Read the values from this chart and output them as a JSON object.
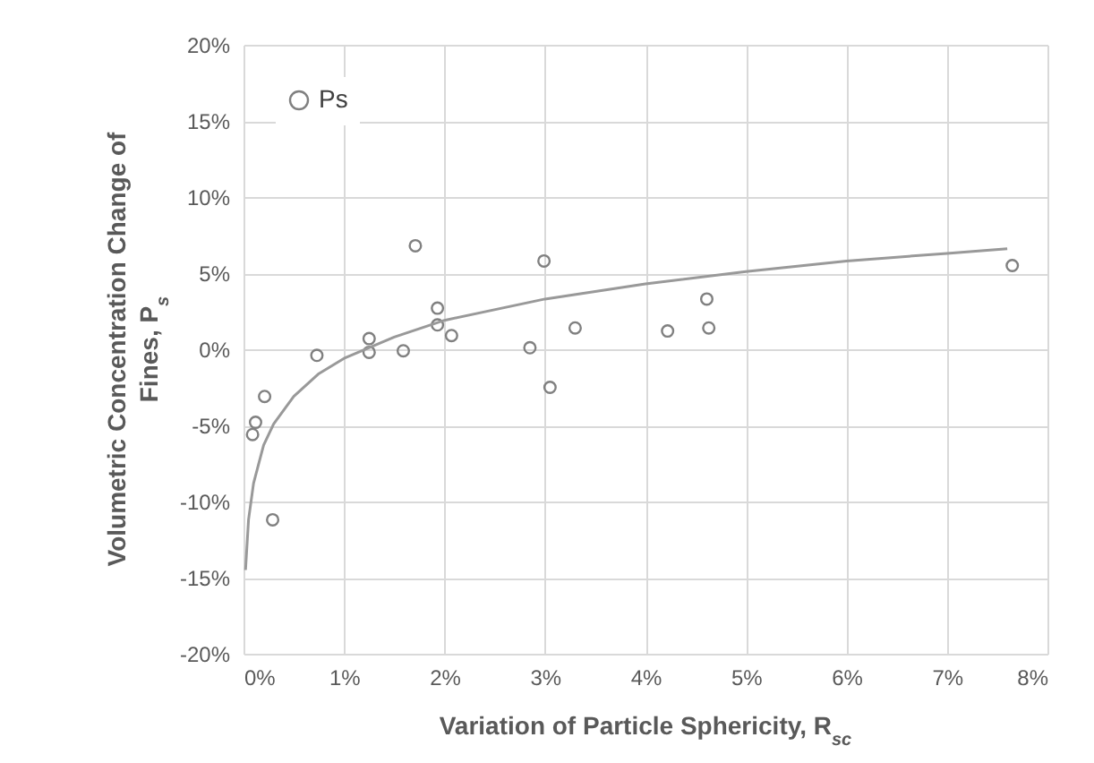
{
  "chart_data": {
    "type": "scatter",
    "xlabel": "Variation of Particle Sphericity, R$_{sc}$",
    "ylabel": "Volumetric Concentration Change of Fines, P$_{s}$",
    "xlim": [
      0,
      8
    ],
    "ylim": [
      -20,
      20
    ],
    "xticks": [
      {
        "value": 0,
        "label": "0%"
      },
      {
        "value": 1,
        "label": "1%"
      },
      {
        "value": 2,
        "label": "2%"
      },
      {
        "value": 3,
        "label": "3%"
      },
      {
        "value": 4,
        "label": "4%"
      },
      {
        "value": 5,
        "label": "5%"
      },
      {
        "value": 6,
        "label": "6%"
      },
      {
        "value": 7,
        "label": "7%"
      },
      {
        "value": 8,
        "label": "8%"
      }
    ],
    "yticks": [
      {
        "value": -20,
        "label": "-20%"
      },
      {
        "value": -15,
        "label": "-15%"
      },
      {
        "value": -10,
        "label": "-10%"
      },
      {
        "value": -5,
        "label": "-5%"
      },
      {
        "value": 0,
        "label": "0%"
      },
      {
        "value": 5,
        "label": "5%"
      },
      {
        "value": 10,
        "label": "10%"
      },
      {
        "value": 15,
        "label": "15%"
      },
      {
        "value": 20,
        "label": "20%"
      }
    ],
    "grid": true,
    "legend": "top left",
    "series": [
      {
        "name": "Ps",
        "marker": "circle",
        "color": "#808080",
        "x": [
          0.09,
          0.12,
          0.21,
          0.29,
          0.73,
          1.25,
          1.25,
          1.59,
          1.71,
          1.93,
          1.93,
          2.07,
          2.85,
          2.99,
          3.05,
          3.3,
          4.22,
          4.61,
          4.63,
          7.65
        ],
        "values": [
          -5.6,
          -4.8,
          -3.1,
          -11.2,
          -0.4,
          0.7,
          -0.2,
          -0.1,
          6.8,
          2.7,
          1.6,
          0.9,
          0.1,
          5.8,
          -2.5,
          1.4,
          1.2,
          3.3,
          1.4,
          5.5
        ]
      },
      {
        "type": "line",
        "color": "#999999",
        "x": [
          0.02,
          0.05,
          0.1,
          0.2,
          0.3,
          0.5,
          0.75,
          1,
          1.5,
          2,
          3,
          4,
          5,
          6,
          7,
          7.6
        ],
        "values": [
          -14.5,
          -11.2,
          -8.8,
          -6.3,
          -4.9,
          -3.1,
          -1.6,
          -0.6,
          0.8,
          1.9,
          3.3,
          4.3,
          5.1,
          5.8,
          6.3,
          6.6
        ]
      }
    ]
  }
}
